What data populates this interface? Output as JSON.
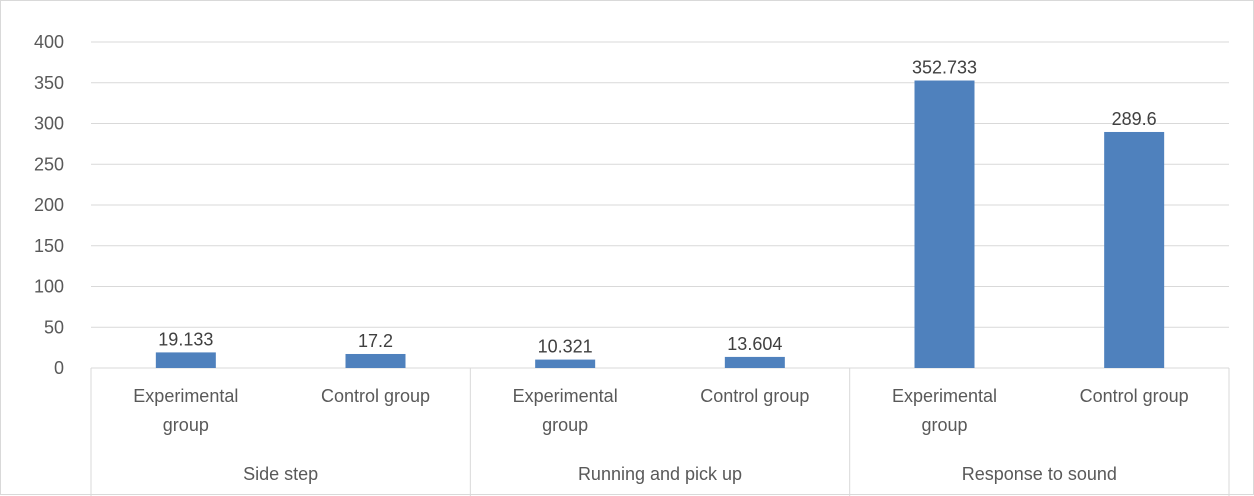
{
  "chart_data": {
    "type": "bar",
    "title": "",
    "xlabel": "",
    "ylabel": "",
    "ylim": [
      0,
      400
    ],
    "yticks": [
      0,
      50,
      100,
      150,
      200,
      250,
      300,
      350,
      400
    ],
    "grid": true,
    "legend": "none",
    "bar_color": "#4f81bd",
    "groups": [
      {
        "name": "Side step",
        "categories": [
          "Experimental group",
          "Control group"
        ],
        "values": [
          19.133,
          17.2
        ],
        "labels": [
          "19.133",
          "17.2"
        ]
      },
      {
        "name": "Running and pick up",
        "categories": [
          "Experimental group",
          "Control group"
        ],
        "values": [
          10.321,
          13.604
        ],
        "labels": [
          "10.321",
          "13.604"
        ]
      },
      {
        "name": "Response to sound",
        "categories": [
          "Experimental group",
          "Control group"
        ],
        "values": [
          352.733,
          289.6
        ],
        "labels": [
          "352.733",
          "289.6"
        ]
      }
    ]
  }
}
